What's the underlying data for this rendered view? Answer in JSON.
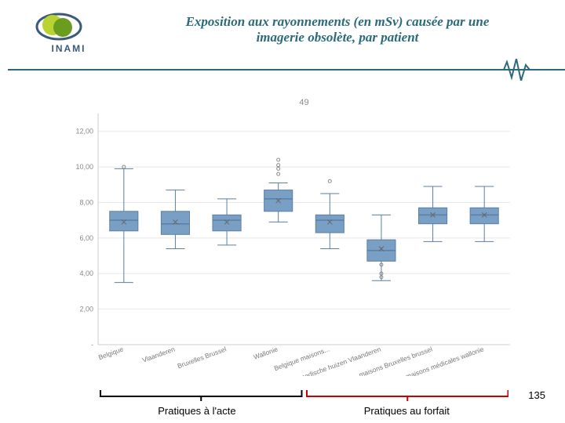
{
  "branding": {
    "org_name": "INAMI",
    "logo_colors": {
      "green_light": "#b8d332",
      "green_dark": "#6a9c1f",
      "ring": "#3a5a78"
    }
  },
  "title": {
    "line1": "Exposition aux rayonnements (en mSv) causée par une",
    "line2": "imagerie obsolète, par patient",
    "fontsize": 17,
    "color": "#2a6a7a"
  },
  "page_number": "135",
  "chart": {
    "type": "boxplot",
    "title": "49",
    "ylim": [
      0,
      13
    ],
    "yticks": [
      0,
      2,
      4,
      6,
      8,
      10,
      12
    ],
    "ytick_labels": [
      "-",
      "2,00",
      "4,00",
      "6,00",
      "8,00",
      "10,00",
      "12,00"
    ],
    "categories": [
      "Belgique",
      "Vlaanderen",
      "Bruxelles Brussel",
      "Wallonie",
      "Belgique maisons...",
      "medische huizen Vlaanderen",
      "maisons Bruxelles brussel",
      "maisons médicales wallonie"
    ],
    "box_color": "#7a9fc4",
    "box_border": "#5a7fa4",
    "whisker_color": "#5a7fa4",
    "mean_marker_color": "#666666",
    "outlier_color": "#888888",
    "grid_color": "#e8e8e8",
    "background": "#ffffff",
    "boxes": [
      {
        "q1": 6.4,
        "median": 7.0,
        "q3": 7.5,
        "low": 3.5,
        "high": 9.9,
        "mean": 6.9,
        "outliers": [
          10.0
        ]
      },
      {
        "q1": 6.2,
        "median": 6.8,
        "q3": 7.5,
        "low": 5.4,
        "high": 8.7,
        "mean": 6.9,
        "outliers": []
      },
      {
        "q1": 6.4,
        "median": 7.0,
        "q3": 7.3,
        "low": 5.6,
        "high": 8.2,
        "mean": 6.9,
        "outliers": []
      },
      {
        "q1": 7.5,
        "median": 8.2,
        "q3": 8.7,
        "low": 6.9,
        "high": 9.1,
        "mean": 8.1,
        "outliers": [
          10.4,
          10.1,
          9.9,
          9.6
        ]
      },
      {
        "q1": 6.3,
        "median": 7.0,
        "q3": 7.3,
        "low": 5.4,
        "high": 8.5,
        "mean": 6.9,
        "outliers": [
          9.2
        ]
      },
      {
        "q1": 4.7,
        "median": 5.3,
        "q3": 5.9,
        "low": 3.6,
        "high": 7.3,
        "mean": 5.4,
        "outliers": [
          4.5,
          4.0,
          3.8
        ]
      },
      {
        "q1": 6.8,
        "median": 7.3,
        "q3": 7.7,
        "low": 5.8,
        "high": 8.9,
        "mean": 7.3,
        "outliers": []
      },
      {
        "q1": 6.8,
        "median": 7.3,
        "q3": 7.7,
        "low": 5.8,
        "high": 8.9,
        "mean": 7.3,
        "outliers": []
      }
    ]
  },
  "brackets": [
    {
      "label": "Pratiques à l'acte",
      "start_cat": 0,
      "end_cat": 3,
      "color": "#000000"
    },
    {
      "label": "Pratiques au forfait",
      "start_cat": 4,
      "end_cat": 7,
      "color": "#cc0000"
    }
  ]
}
